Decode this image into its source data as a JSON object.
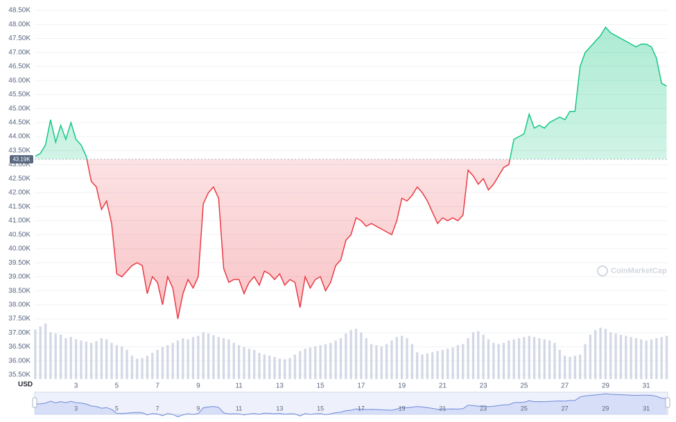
{
  "chart_data": {
    "type": "line",
    "currency": "USD",
    "watermark": "CoinMarketCap",
    "baseline": {
      "value": 43190,
      "label": "43.19K"
    },
    "colors": {
      "above": "#16c784",
      "below": "#ea3943",
      "volume": "#c9cee0"
    },
    "grid": true,
    "xlim": [
      0.97,
      32.05
    ],
    "ylim": [
      35500,
      48500
    ],
    "xticks": [
      3,
      5,
      7,
      9,
      11,
      13,
      15,
      17,
      19,
      21,
      23,
      25,
      27,
      29,
      31
    ],
    "yticks": [
      {
        "value": 35500,
        "label": "35.50K"
      },
      {
        "value": 36000,
        "label": "36.00K"
      },
      {
        "value": 36500,
        "label": "36.50K"
      },
      {
        "value": 37000,
        "label": "37.00K"
      },
      {
        "value": 37500,
        "label": "37.50K"
      },
      {
        "value": 38000,
        "label": "38.00K"
      },
      {
        "value": 38500,
        "label": "38.50K"
      },
      {
        "value": 39000,
        "label": "39.00K"
      },
      {
        "value": 39500,
        "label": "39.50K"
      },
      {
        "value": 40000,
        "label": "40.00K"
      },
      {
        "value": 40500,
        "label": "40.50K"
      },
      {
        "value": 41000,
        "label": "41.00K"
      },
      {
        "value": 41500,
        "label": "41.50K"
      },
      {
        "value": 42000,
        "label": "42.00K"
      },
      {
        "value": 42500,
        "label": "42.50K"
      },
      {
        "value": 43000,
        "label": "43.00K"
      },
      {
        "value": 43500,
        "label": "43.50K"
      },
      {
        "value": 44000,
        "label": "44.00K"
      },
      {
        "value": 44500,
        "label": "44.50K"
      },
      {
        "value": 45000,
        "label": "45.00K"
      },
      {
        "value": 45500,
        "label": "45.50K"
      },
      {
        "value": 46000,
        "label": "46.00K"
      },
      {
        "value": 46500,
        "label": "46.50K"
      },
      {
        "value": 47000,
        "label": "47.00K"
      },
      {
        "value": 47500,
        "label": "47.50K"
      },
      {
        "value": 48000,
        "label": "48.00K"
      },
      {
        "value": 48500,
        "label": "48.50K"
      }
    ],
    "x": [
      1,
      1.25,
      1.5,
      1.75,
      2,
      2.25,
      2.5,
      2.75,
      3,
      3.25,
      3.5,
      3.75,
      4,
      4.25,
      4.5,
      4.75,
      5,
      5.25,
      5.5,
      5.75,
      6,
      6.25,
      6.5,
      6.75,
      7,
      7.25,
      7.5,
      7.75,
      8,
      8.25,
      8.5,
      8.75,
      9,
      9.25,
      9.5,
      9.75,
      10,
      10.25,
      10.5,
      10.75,
      11,
      11.25,
      11.5,
      11.75,
      12,
      12.25,
      12.5,
      12.75,
      13,
      13.25,
      13.5,
      13.75,
      14,
      14.25,
      14.5,
      14.75,
      15,
      15.25,
      15.5,
      15.75,
      16,
      16.25,
      16.5,
      16.75,
      17,
      17.25,
      17.5,
      17.75,
      18,
      18.25,
      18.5,
      18.75,
      19,
      19.25,
      19.5,
      19.75,
      20,
      20.25,
      20.5,
      20.75,
      21,
      21.25,
      21.5,
      21.75,
      22,
      22.25,
      22.5,
      22.75,
      23,
      23.25,
      23.5,
      23.75,
      24,
      24.25,
      24.5,
      24.75,
      25,
      25.25,
      25.5,
      25.75,
      26,
      26.25,
      26.5,
      26.75,
      27,
      27.25,
      27.5,
      27.75,
      28,
      28.25,
      28.5,
      28.75,
      29,
      29.25,
      29.5,
      29.75,
      30,
      30.25,
      30.5,
      30.75,
      31,
      31.25,
      31.5,
      31.75,
      32
    ],
    "values": [
      43300,
      43400,
      43700,
      44600,
      43800,
      44400,
      43900,
      44500,
      43900,
      43700,
      43300,
      42400,
      42200,
      41400,
      41700,
      40900,
      39100,
      39000,
      39200,
      39400,
      39500,
      39400,
      38400,
      39000,
      38800,
      38000,
      39000,
      38600,
      37500,
      38400,
      38900,
      38600,
      39000,
      41600,
      42000,
      42200,
      41800,
      39300,
      38800,
      38900,
      38900,
      38400,
      38800,
      39000,
      38700,
      39200,
      39100,
      38900,
      39100,
      38700,
      38900,
      38800,
      37900,
      39000,
      38600,
      38900,
      39000,
      38500,
      38800,
      39400,
      39600,
      40300,
      40500,
      41100,
      41000,
      40800,
      40900,
      40800,
      40700,
      40600,
      40500,
      41000,
      41800,
      41700,
      41900,
      42200,
      42000,
      41700,
      41300,
      40900,
      41100,
      41000,
      41100,
      41000,
      41200,
      42800,
      42600,
      42300,
      42500,
      42100,
      42300,
      42600,
      42900,
      43000,
      43900,
      44000,
      44100,
      44800,
      44300,
      44400,
      44300,
      44500,
      44600,
      44700,
      44600,
      44900,
      44900,
      46500,
      47000,
      47200,
      47400,
      47600,
      47900,
      47700,
      47600,
      47500,
      47400,
      47300,
      47200,
      47300,
      47300,
      47200,
      46800,
      45900,
      45800
    ],
    "volume": [
      85,
      90,
      95,
      80,
      78,
      76,
      70,
      72,
      68,
      66,
      64,
      62,
      65,
      70,
      68,
      62,
      58,
      56,
      50,
      40,
      35,
      36,
      40,
      45,
      50,
      55,
      58,
      62,
      66,
      70,
      68,
      72,
      74,
      80,
      78,
      75,
      72,
      70,
      68,
      62,
      58,
      55,
      52,
      50,
      45,
      42,
      40,
      38,
      35,
      34,
      36,
      42,
      48,
      52,
      54,
      56,
      58,
      60,
      62,
      66,
      70,
      78,
      84,
      86,
      80,
      70,
      60,
      58,
      56,
      60,
      66,
      72,
      74,
      70,
      60,
      46,
      42,
      44,
      46,
      48,
      50,
      52,
      54,
      58,
      60,
      70,
      80,
      82,
      76,
      68,
      62,
      60,
      62,
      66,
      68,
      70,
      72,
      74,
      72,
      70,
      68,
      66,
      62,
      50,
      40,
      38,
      40,
      42,
      60,
      76,
      84,
      88,
      86,
      80,
      78,
      76,
      74,
      72,
      70,
      68,
      66,
      68,
      70,
      72,
      74
    ]
  }
}
